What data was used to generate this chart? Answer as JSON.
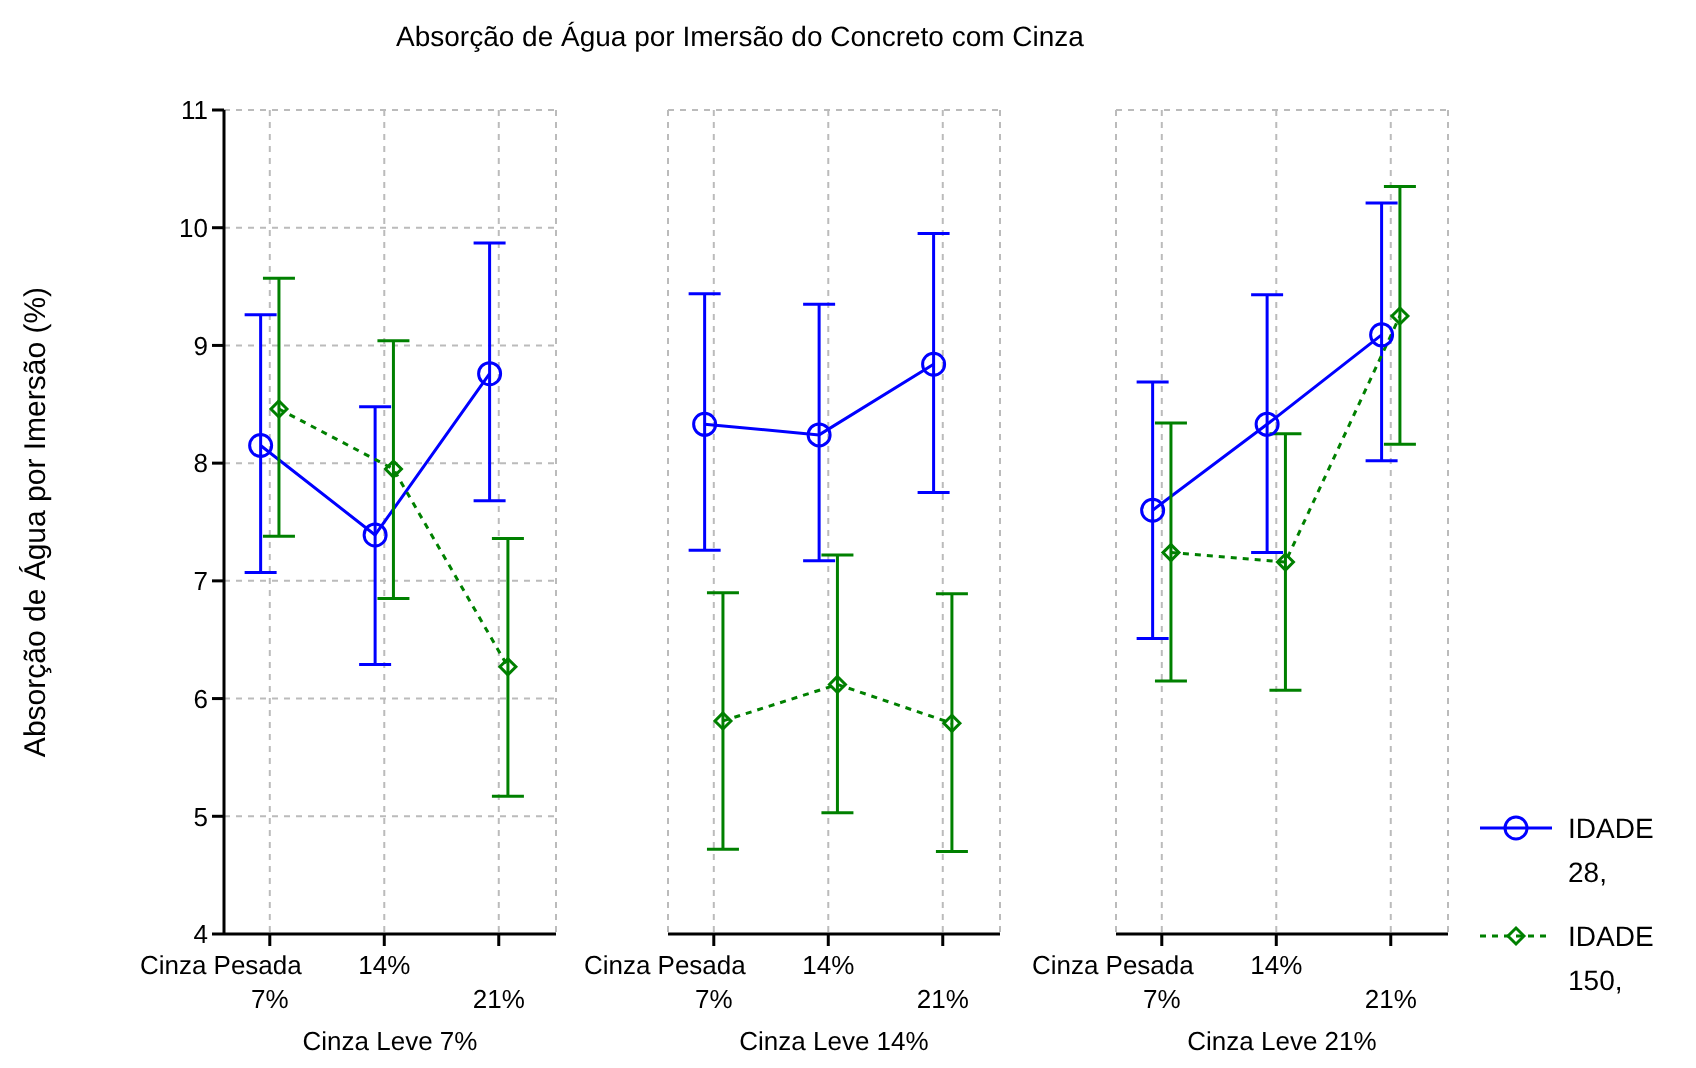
{
  "chart_data": [
    {
      "type": "line",
      "title": "Absorção de Água por Imersão do Concreto com Cinza",
      "ylabel": "Absorção de Água por Imersão (%)",
      "xlabel": "Cinza Leve 7%",
      "annotations": [
        "Cinza Pesada"
      ],
      "categories": [
        "7%",
        "14%",
        "21%"
      ],
      "ylim": [
        4,
        11
      ],
      "yticks": [
        4,
        5,
        6,
        7,
        8,
        9,
        10,
        11
      ],
      "grid": true,
      "series": [
        {
          "color": "#0000ff",
          "marker": "circle",
          "line_style": "solid",
          "values": [
            8.15,
            7.39,
            8.76
          ],
          "errors": [
            [
              7.07,
              9.26
            ],
            [
              6.29,
              8.48
            ],
            [
              7.68,
              9.87
            ]
          ]
        },
        {
          "color": "#008000",
          "marker": "diamond",
          "line_style": "dotted",
          "values": [
            8.46,
            7.95,
            6.27
          ],
          "errors": [
            [
              7.38,
              9.57
            ],
            [
              6.85,
              9.04
            ],
            [
              5.17,
              7.36
            ]
          ]
        }
      ]
    },
    {
      "type": "line",
      "xlabel": "Cinza Leve 14%",
      "annotations": [
        "Cinza Pesada"
      ],
      "categories": [
        "7%",
        "14%",
        "21%"
      ],
      "ylim": [
        4,
        11
      ],
      "yticks": [
        4,
        5,
        6,
        7,
        8,
        9,
        10,
        11
      ],
      "grid": true,
      "tick_labels": "x",
      "series": [
        {
          "color": "#0000ff",
          "marker": "circle",
          "line_style": "solid",
          "values": [
            8.33,
            8.24,
            8.84
          ],
          "errors": [
            [
              7.26,
              9.44
            ],
            [
              7.17,
              9.35
            ],
            [
              7.75,
              9.95
            ]
          ]
        },
        {
          "color": "#008000",
          "marker": "diamond",
          "line_style": "dotted",
          "values": [
            5.81,
            6.12,
            5.79
          ],
          "errors": [
            [
              4.72,
              6.9
            ],
            [
              5.03,
              7.22
            ],
            [
              4.7,
              6.89
            ]
          ]
        }
      ]
    },
    {
      "type": "line",
      "xlabel": "Cinza Leve 21%",
      "annotations": [
        "Cinza Pesada"
      ],
      "categories": [
        "7%",
        "14%",
        "21%"
      ],
      "ylim": [
        4,
        11
      ],
      "yticks": [
        4,
        5,
        6,
        7,
        8,
        9,
        10,
        11
      ],
      "grid": true,
      "tick_labels": "x",
      "legend": "bottom right",
      "series": [
        {
          "name": "IDADE 28,",
          "color": "#0000ff",
          "marker": "circle",
          "line_style": "solid",
          "values": [
            7.6,
            8.33,
            9.09
          ],
          "errors": [
            [
              6.51,
              8.69
            ],
            [
              7.24,
              9.43
            ],
            [
              8.02,
              10.21
            ]
          ]
        },
        {
          "name": "IDADE 150,",
          "color": "#008000",
          "marker": "diamond",
          "line_style": "dotted",
          "values": [
            7.24,
            7.16,
            9.25
          ],
          "errors": [
            [
              6.15,
              8.34
            ],
            [
              6.07,
              8.25
            ],
            [
              8.16,
              10.35
            ]
          ]
        }
      ]
    }
  ]
}
